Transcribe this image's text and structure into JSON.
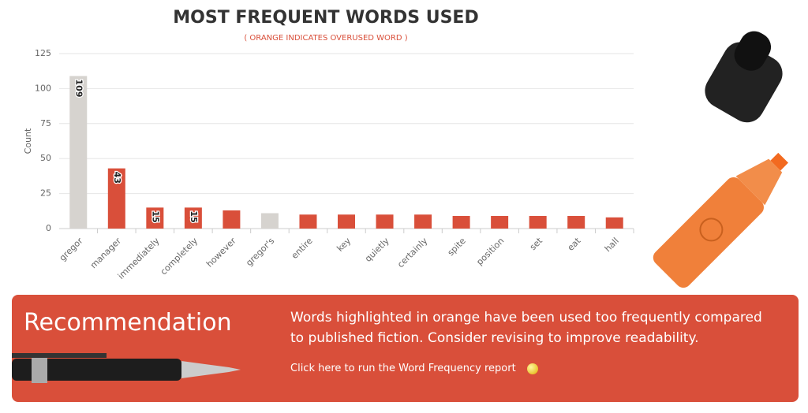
{
  "chart_data": {
    "type": "bar",
    "title": "MOST FREQUENT WORDS USED",
    "subtitle": "( ORANGE INDICATES OVERUSED WORD )",
    "y_label": "Count",
    "categories": [
      "gregor",
      "manager",
      "immediately",
      "completely",
      "however",
      "gregor's",
      "entire",
      "key",
      "quietly",
      "certainly",
      "spite",
      "position",
      "set",
      "eat",
      "hall"
    ],
    "values": [
      109,
      43,
      15,
      15,
      13,
      11,
      10,
      10,
      10,
      10,
      9,
      9,
      9,
      9,
      8
    ],
    "value_labels": [
      "109",
      "43",
      "15",
      "15",
      null,
      null,
      null,
      null,
      null,
      null,
      null,
      null,
      null,
      null,
      null
    ],
    "colors": [
      "#d6d3cf",
      "#d94f3a",
      "#d94f3a",
      "#d94f3a",
      "#d94f3a",
      "#d6d3cf",
      "#d94f3a",
      "#d94f3a",
      "#d94f3a",
      "#d94f3a",
      "#d94f3a",
      "#d94f3a",
      "#d94f3a",
      "#d94f3a",
      "#d94f3a"
    ],
    "ylim": [
      0,
      125
    ],
    "yticks": [
      0,
      25,
      50,
      75,
      100,
      125
    ],
    "grid": true
  },
  "recommendation": {
    "heading": "Recommendation",
    "text": "Words highlighted in orange have been used too frequently compared to published fiction. Consider revising to improve readability.",
    "link": "Click here to run the Word Frequency report"
  }
}
